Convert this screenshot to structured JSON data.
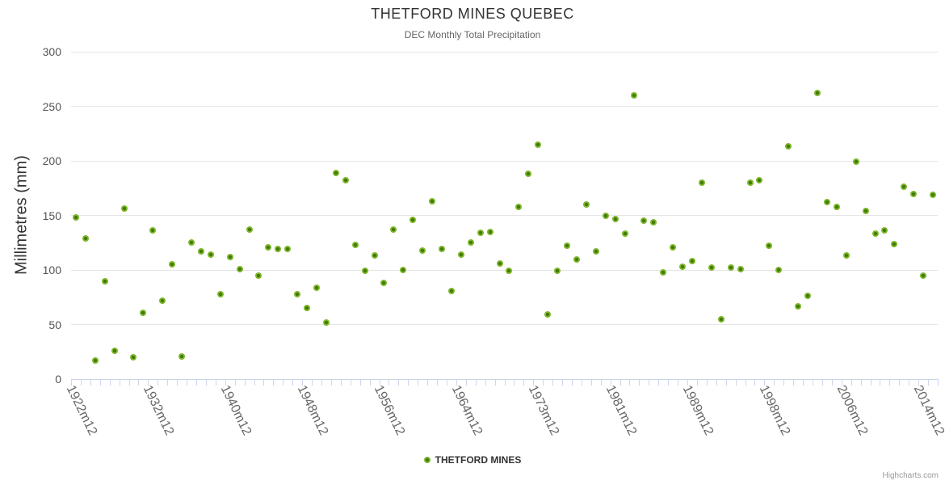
{
  "title": "THETFORD MINES QUEBEC",
  "subtitle": "DEC Monthly Total Precipitation",
  "credit": "Highcharts.com",
  "legend": {
    "series_label": "THETFORD MINES"
  },
  "colors": {
    "marker_outer": "#7fb62b",
    "marker_core": "#3e7a05",
    "grid": "#e6e6e6",
    "axis": "#ccd6eb",
    "title_text": "#333333",
    "subtitle_text": "#666666",
    "x_label_text": "#666666",
    "y_label_text": "#555555",
    "credit_text": "#999999"
  },
  "chart_data": {
    "type": "scatter",
    "title": "THETFORD MINES QUEBEC",
    "subtitle": "DEC Monthly Total Precipitation",
    "xlabel": "",
    "ylabel": "Millimetres (mm)",
    "ylim": [
      0,
      300
    ],
    "yticks": [
      0,
      50,
      100,
      150,
      200,
      250,
      300
    ],
    "grid": true,
    "legend_position": "bottom",
    "x_tick_labels": [
      {
        "index": 0,
        "label": "1922m12"
      },
      {
        "index": 8,
        "label": "1932m12"
      },
      {
        "index": 16,
        "label": "1940m12"
      },
      {
        "index": 24,
        "label": "1948m12"
      },
      {
        "index": 32,
        "label": "1956m12"
      },
      {
        "index": 40,
        "label": "1964m12"
      },
      {
        "index": 48,
        "label": "1973m12"
      },
      {
        "index": 56,
        "label": "1981m12"
      },
      {
        "index": 64,
        "label": "1989m12"
      },
      {
        "index": 72,
        "label": "1998m12"
      },
      {
        "index": 80,
        "label": "2006m12"
      },
      {
        "index": 88,
        "label": "2014m12"
      }
    ],
    "series": [
      {
        "name": "THETFORD MINES",
        "values": [
          148,
          129,
          17,
          90,
          26,
          156,
          20,
          61,
          136,
          72,
          105,
          21,
          125,
          117,
          114,
          78,
          112,
          101,
          137,
          95,
          121,
          119,
          119,
          78,
          65,
          84,
          52,
          189,
          182,
          123,
          99,
          113,
          88,
          137,
          100,
          146,
          118,
          163,
          119,
          81,
          114,
          125,
          134,
          135,
          106,
          99,
          158,
          188,
          215,
          59,
          99,
          122,
          110,
          160,
          117,
          150,
          147,
          133,
          260,
          145,
          144,
          98,
          121,
          103,
          108,
          180,
          102,
          55,
          102,
          101,
          180,
          182,
          122,
          100,
          213,
          67,
          76,
          262,
          162,
          158,
          113,
          199,
          154,
          133,
          136,
          124,
          176,
          170,
          95,
          169
        ]
      }
    ]
  }
}
